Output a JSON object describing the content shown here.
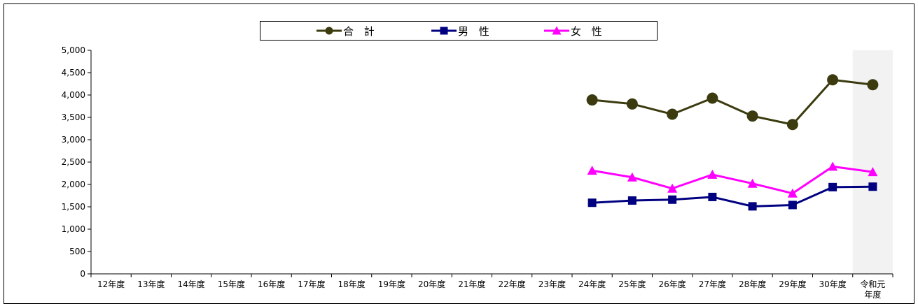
{
  "chart_data": {
    "type": "line",
    "categories": [
      "12年度",
      "13年度",
      "14年度",
      "15年度",
      "16年度",
      "17年度",
      "18年度",
      "19年度",
      "20年度",
      "21年度",
      "22年度",
      "23年度",
      "24年度",
      "25年度",
      "26年度",
      "27年度",
      "28年度",
      "29年度",
      "30年度",
      "令和元年度"
    ],
    "category_lines": [
      [
        "12年度"
      ],
      [
        "13年度"
      ],
      [
        "14年度"
      ],
      [
        "15年度"
      ],
      [
        "16年度"
      ],
      [
        "17年度"
      ],
      [
        "18年度"
      ],
      [
        "19年度"
      ],
      [
        "20年度"
      ],
      [
        "21年度"
      ],
      [
        "22年度"
      ],
      [
        "23年度"
      ],
      [
        "24年度"
      ],
      [
        "25年度"
      ],
      [
        "26年度"
      ],
      [
        "27年度"
      ],
      [
        "28年度"
      ],
      [
        "29年度"
      ],
      [
        "30年度"
      ],
      [
        "令和元",
        "年度"
      ]
    ],
    "ylim": [
      0,
      5000
    ],
    "yticks": [
      0,
      500,
      1000,
      1500,
      2000,
      2500,
      3000,
      3500,
      4000,
      4500,
      5000
    ],
    "ytick_labels": [
      "0",
      "500",
      "1,000",
      "1,500",
      "2,000",
      "2,500",
      "3,000",
      "3,500",
      "4,000",
      "4,500",
      "5,000"
    ],
    "highlight_category": "令和元年度",
    "highlight_color": "#f2f2f2",
    "legend_position": "top-center",
    "series": [
      {
        "name": "合 計",
        "color": "#3b3b0f",
        "marker": "circle",
        "values": [
          null,
          null,
          null,
          null,
          null,
          null,
          null,
          null,
          null,
          null,
          null,
          null,
          3890,
          3800,
          3570,
          3930,
          3530,
          3340,
          4340,
          4230
        ]
      },
      {
        "name": "男 性",
        "color": "#000080",
        "marker": "square",
        "values": [
          null,
          null,
          null,
          null,
          null,
          null,
          null,
          null,
          null,
          null,
          null,
          null,
          1590,
          1640,
          1660,
          1720,
          1510,
          1540,
          1940,
          1950
        ]
      },
      {
        "name": "女 性",
        "color": "#ff00ff",
        "marker": "triangle",
        "values": [
          null,
          null,
          null,
          null,
          null,
          null,
          null,
          null,
          null,
          null,
          null,
          null,
          2310,
          2160,
          1910,
          2220,
          2020,
          1800,
          2400,
          2280
        ]
      }
    ]
  }
}
